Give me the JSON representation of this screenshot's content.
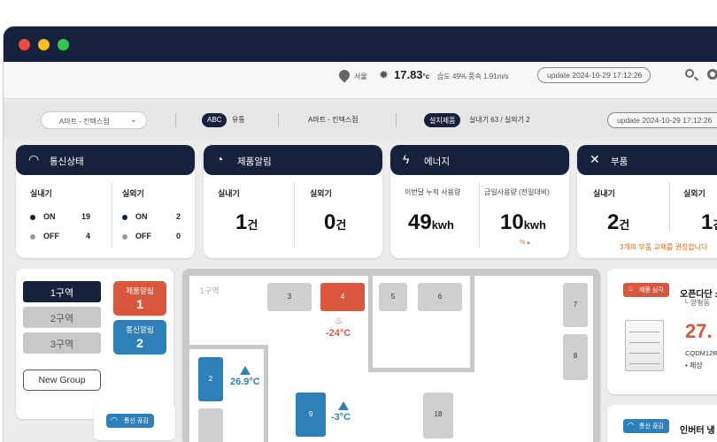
{
  "topbar": {
    "location": "서울",
    "temperature": "17.83",
    "temp_unit": "°c",
    "weather": "습도 49% 풍속 1.91m/s",
    "update": "update 2024-10-29 17:12:26"
  },
  "filterbar": {
    "store_select": "A마트 - 킨텍스점",
    "company_badge": "ABC",
    "company_type": "유통",
    "store_name": "A마트 - 킨텍스점",
    "install_badge": "설치제품",
    "install_counts": "실내기 63 / 실외기 2",
    "update": "update 2024-10-29 17:12:26"
  },
  "cards": {
    "comm": {
      "title": "통신상태",
      "indoor_label": "실내기",
      "outdoor_label": "실외기",
      "on_label": "ON",
      "off_label": "OFF",
      "indoor_on": "19",
      "indoor_off": "4",
      "outdoor_on": "2",
      "outdoor_off": "0"
    },
    "alarm": {
      "title": "제품알림",
      "indoor_label": "실내기",
      "outdoor_label": "실외기",
      "indoor_count": "1",
      "outdoor_count": "0",
      "unit": "건"
    },
    "energy": {
      "title": "에너지",
      "month_label": "이번달 누적 사용량",
      "month_value": "49",
      "today_label": "금일사용량 (전일대비)",
      "today_value": "10",
      "unit": "kwh",
      "trend": "% ▴"
    },
    "parts": {
      "title": "부품",
      "indoor_label": "실내기",
      "outdoor_label": "실외기",
      "indoor_count": "2",
      "outdoor_count": "1",
      "unit": "건",
      "notice": "3개의 부품 교체를 권장합니다"
    }
  },
  "zones": {
    "items": [
      "1구역",
      "2구역",
      "3구역"
    ],
    "product_alert_label": "제품알림",
    "product_alert_count": "1",
    "comm_alert_label": "통신알림",
    "comm_alert_count": "2",
    "new_group": "New Group",
    "comm_lost": "통신 끊김"
  },
  "floor": {
    "zone_label": "1구역",
    "units": [
      "3",
      "4",
      "5",
      "6",
      "7",
      "8",
      "2",
      "9",
      "18",
      "1"
    ],
    "unit4_temp": "-24°C",
    "unit2_temp": "26.9°C",
    "unit9_temp": "-3°C"
  },
  "products": {
    "first": {
      "status": "제품 심각",
      "name": "오픈다단 쇼",
      "location": "└ 양평동",
      "temp": "27.",
      "model": "CQDM12R",
      "state": "• 제상"
    },
    "second": {
      "status": "통신 끊김",
      "name": "인버터 냉"
    }
  },
  "colors": {
    "navy": "#16213e",
    "alert_red": "#d9573d",
    "comm_blue": "#2f80b9",
    "warning_orange": "#e36b1a"
  }
}
